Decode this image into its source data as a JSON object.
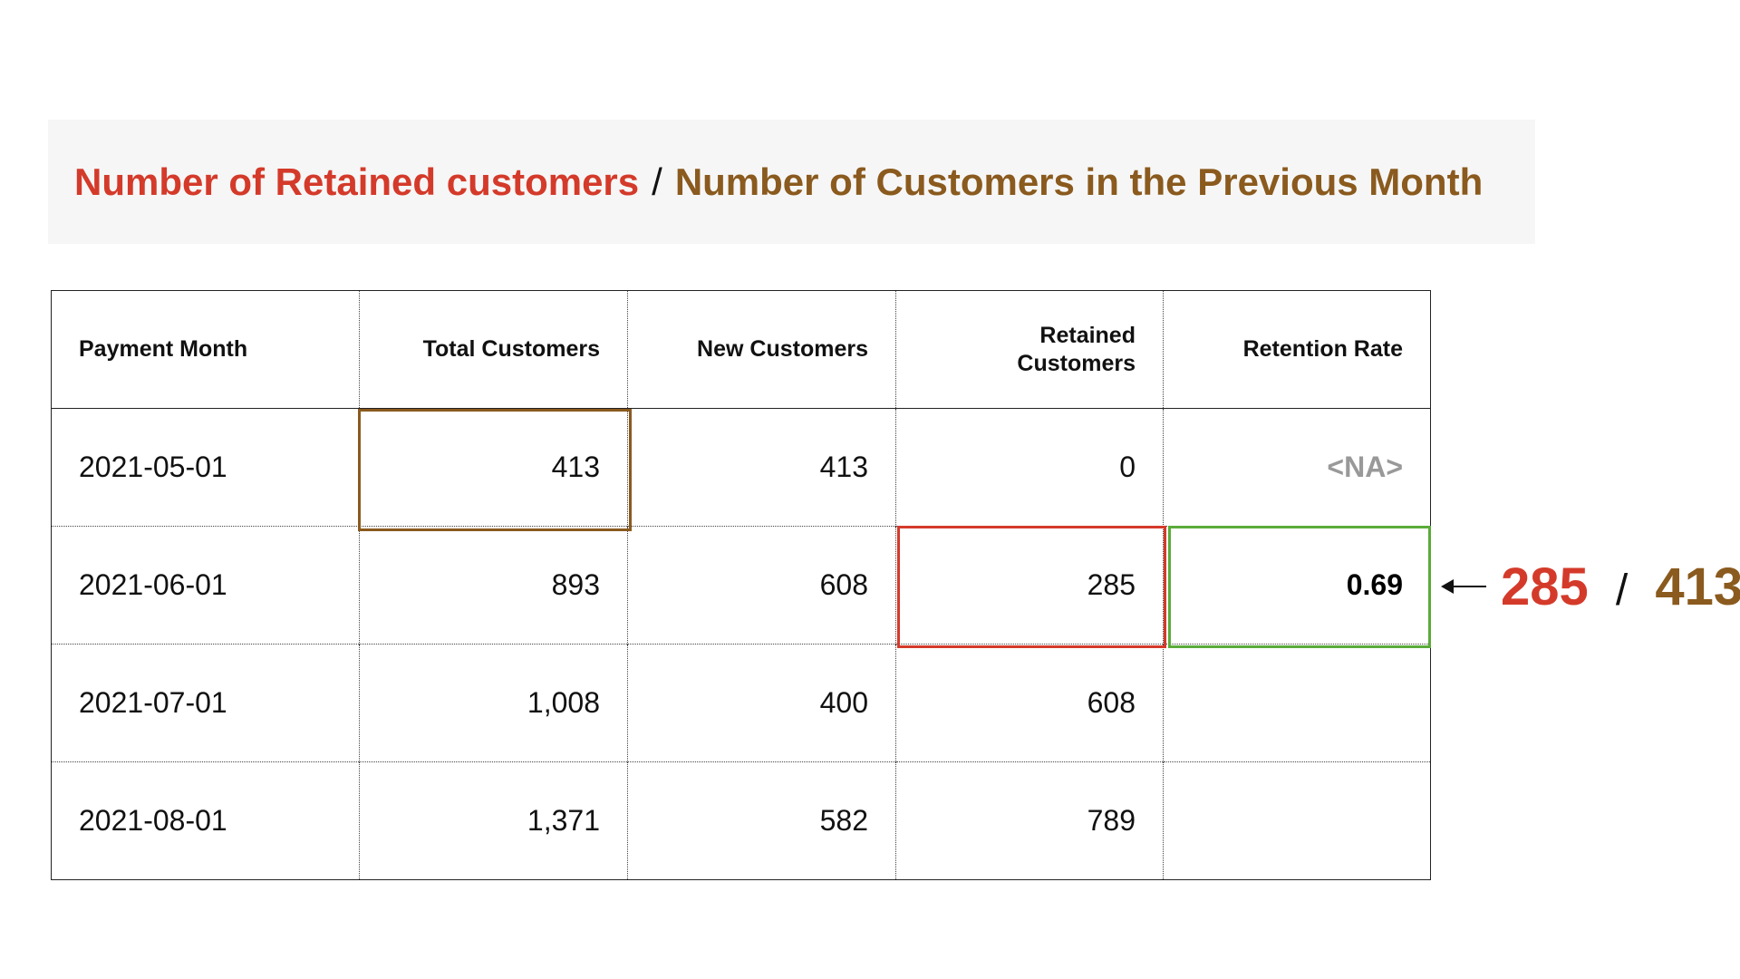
{
  "colors": {
    "retained": "#d43a2a",
    "previous": "#8a5a1e",
    "rate_highlight": "#5aab3a",
    "na": "#999999"
  },
  "formula": {
    "numerator": "Number of Retained customers",
    "separator": "/",
    "denominator": "Number of Customers in the Previous Month"
  },
  "table": {
    "headers": {
      "payment_month": "Payment Month",
      "total_customers": "Total Customers",
      "new_customers": "New Customers",
      "retained_line1": "Retained",
      "retained_line2": "Customers",
      "retention_rate": "Retention Rate"
    },
    "rows": [
      {
        "month": "2021-05-01",
        "total": "413",
        "new": "413",
        "retained": "0",
        "rate": "<NA>"
      },
      {
        "month": "2021-06-01",
        "total": "893",
        "new": "608",
        "retained": "285",
        "rate": "0.69"
      },
      {
        "month": "2021-07-01",
        "total": "1,008",
        "new": "400",
        "retained": "608",
        "rate": ""
      },
      {
        "month": "2021-08-01",
        "total": "1,371",
        "new": "582",
        "retained": "789",
        "rate": ""
      }
    ]
  },
  "calculation": {
    "numerator": "285",
    "separator": "/",
    "denominator": "413"
  }
}
